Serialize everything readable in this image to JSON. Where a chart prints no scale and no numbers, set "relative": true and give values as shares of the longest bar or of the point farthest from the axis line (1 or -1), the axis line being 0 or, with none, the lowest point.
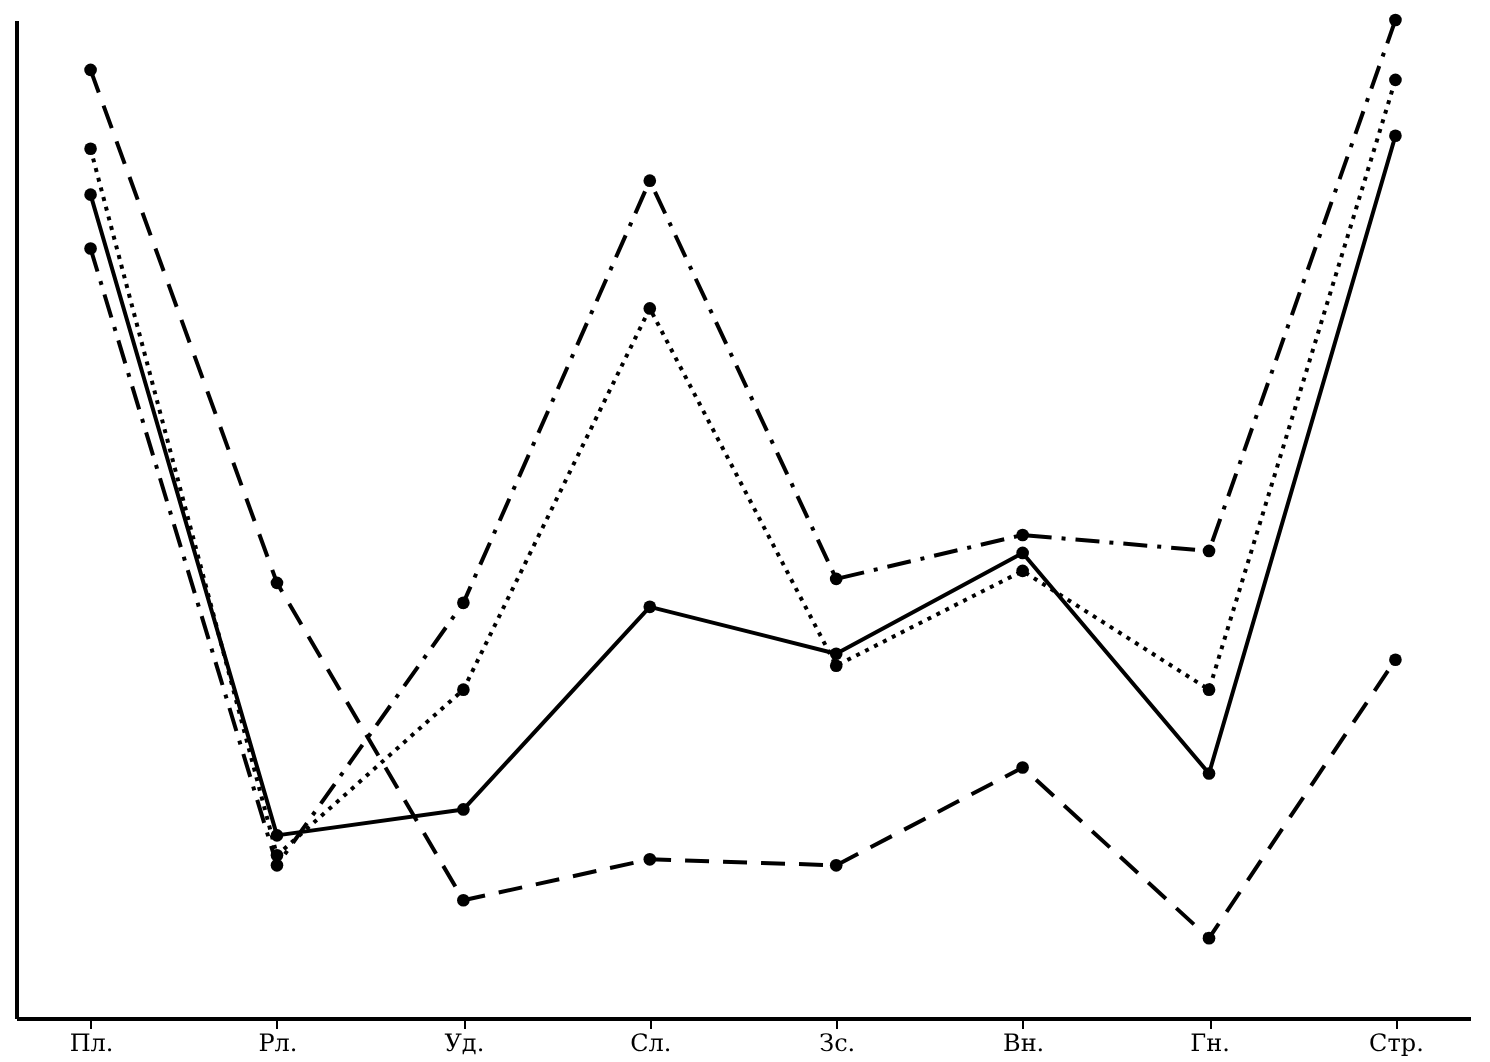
{
  "chart_data": {
    "type": "line",
    "relative": true,
    "marker": "circle",
    "categories": [
      "Пл.",
      "Рл.",
      "Уд.",
      "Сл.",
      "Зс.",
      "Вн.",
      "Гн.",
      "Стр."
    ],
    "series": [
      {
        "color": "#000000",
        "line_style": "solid",
        "values": [
          0.825,
          0.183,
          0.209,
          0.412,
          0.365,
          0.466,
          0.245,
          0.884
        ]
      },
      {
        "color": "#000000",
        "line_style": "dashed",
        "values": [
          0.95,
          0.436,
          0.118,
          0.159,
          0.153,
          0.251,
          0.08,
          0.359
        ]
      },
      {
        "color": "#000000",
        "line_style": "dotted",
        "values": [
          0.871,
          0.163,
          0.329,
          0.711,
          0.353,
          0.448,
          0.329,
          0.94
        ]
      },
      {
        "color": "#000000",
        "line_style": "dashdot",
        "values": [
          0.771,
          0.153,
          0.416,
          0.839,
          0.44,
          0.484,
          0.468,
          1
        ]
      }
    ]
  }
}
